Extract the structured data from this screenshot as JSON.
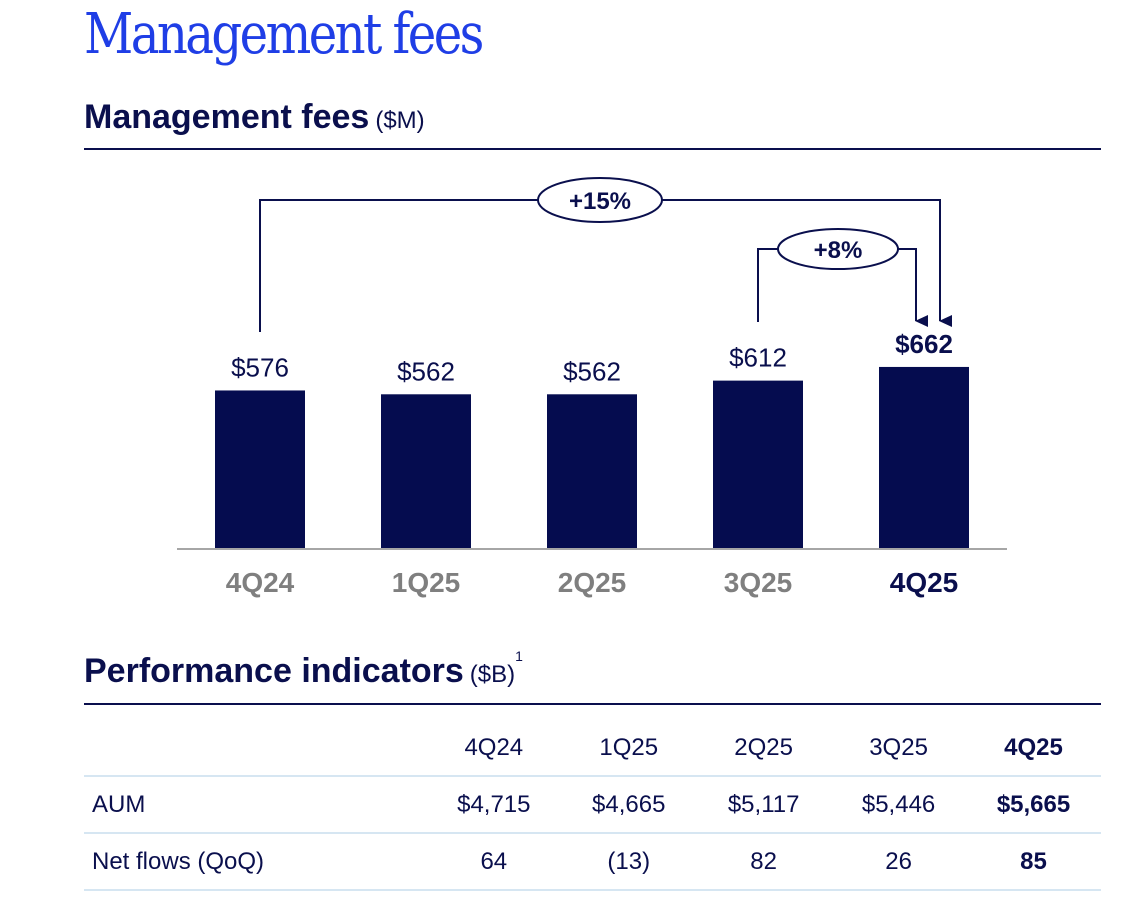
{
  "page_title": "Management fees",
  "fees_section": {
    "title": "Management fees",
    "unit": "($M)"
  },
  "chart_data": {
    "type": "bar",
    "categories": [
      "4Q24",
      "1Q25",
      "2Q25",
      "3Q25",
      "4Q25"
    ],
    "values": [
      576,
      562,
      562,
      612,
      662
    ],
    "value_labels": [
      "$576",
      "$562",
      "$562",
      "$612",
      "$662"
    ],
    "highlight_category": "4Q25",
    "annotations": [
      {
        "label": "+15%",
        "from": "4Q24",
        "to": "4Q25"
      },
      {
        "label": "+8%",
        "from": "3Q25",
        "to": "4Q25"
      }
    ],
    "colors": {
      "bar": "#050c4f",
      "baseline": "#a6a6a6",
      "inactive_label": "#7f7f7f",
      "text": "#0a0f4d"
    }
  },
  "indicators_section": {
    "title": "Performance indicators",
    "unit": "($B)",
    "footnote": "1"
  },
  "table": {
    "columns": [
      "4Q24",
      "1Q25",
      "2Q25",
      "3Q25",
      "4Q25"
    ],
    "rows": [
      {
        "label": "AUM",
        "values": [
          "$4,715",
          "$4,665",
          "$5,117",
          "$5,446",
          "$5,665"
        ]
      },
      {
        "label": "Net flows (QoQ)",
        "values": [
          "64",
          "(13)",
          "82",
          "26",
          "85"
        ]
      }
    ]
  },
  "colors": {
    "title_accent": "#1f3ee6",
    "navy": "#0a0f4d",
    "table_rule": "#d6e6f2"
  }
}
